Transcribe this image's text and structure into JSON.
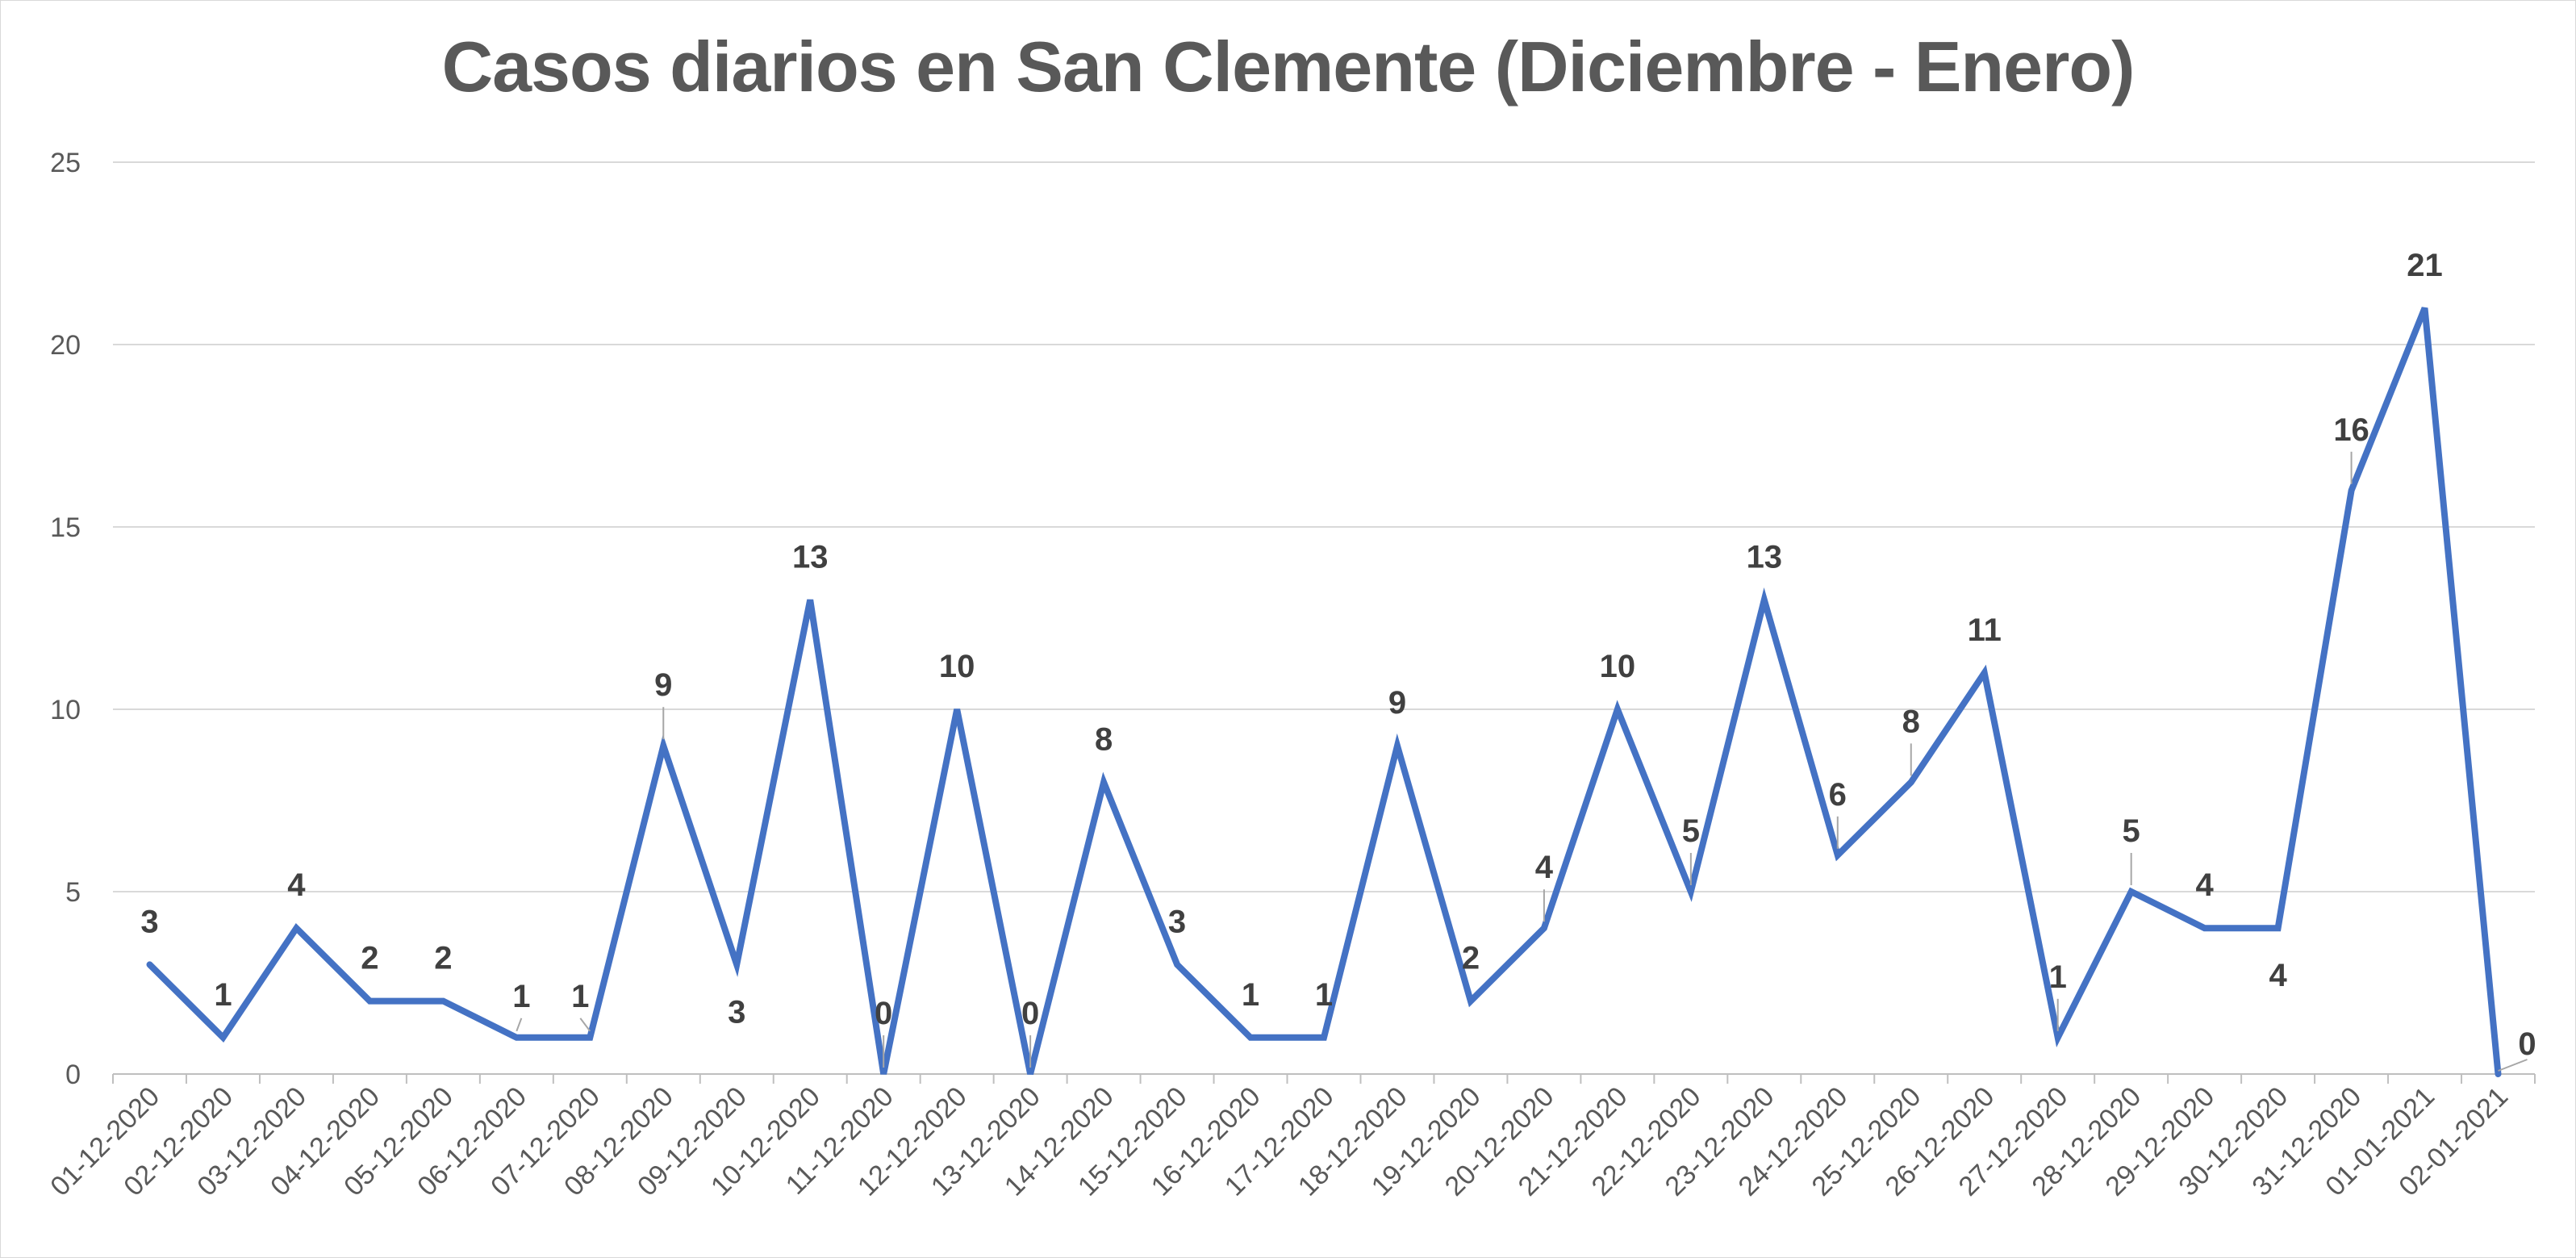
{
  "chart_data": {
    "type": "line",
    "title": "Casos diarios en San Clemente (Diciembre - Enero)",
    "xlabel": "",
    "ylabel": "",
    "ylim": [
      0,
      25
    ],
    "yticks": [
      "0",
      "5",
      "10",
      "15",
      "20",
      "25"
    ],
    "grid": true,
    "legend": "none",
    "line_color": "#4472c4",
    "categories": [
      "01-12-2020",
      "02-12-2020",
      "03-12-2020",
      "04-12-2020",
      "05-12-2020",
      "06-12-2020",
      "07-12-2020",
      "08-12-2020",
      "09-12-2020",
      "10-12-2020",
      "11-12-2020",
      "12-12-2020",
      "13-12-2020",
      "14-12-2020",
      "15-12-2020",
      "16-12-2020",
      "17-12-2020",
      "18-12-2020",
      "19-12-2020",
      "20-12-2020",
      "21-12-2020",
      "22-12-2020",
      "23-12-2020",
      "24-12-2020",
      "25-12-2020",
      "26-12-2020",
      "27-12-2020",
      "28-12-2020",
      "29-12-2020",
      "30-12-2020",
      "31-12-2020",
      "01-01-2021",
      "02-01-2021"
    ],
    "series": [
      {
        "values": [
          3,
          1,
          4,
          2,
          2,
          1,
          1,
          9,
          3,
          13,
          0,
          10,
          0,
          8,
          3,
          1,
          1,
          9,
          2,
          4,
          10,
          5,
          13,
          6,
          8,
          11,
          1,
          5,
          4,
          4,
          16,
          21,
          0
        ]
      }
    ]
  }
}
